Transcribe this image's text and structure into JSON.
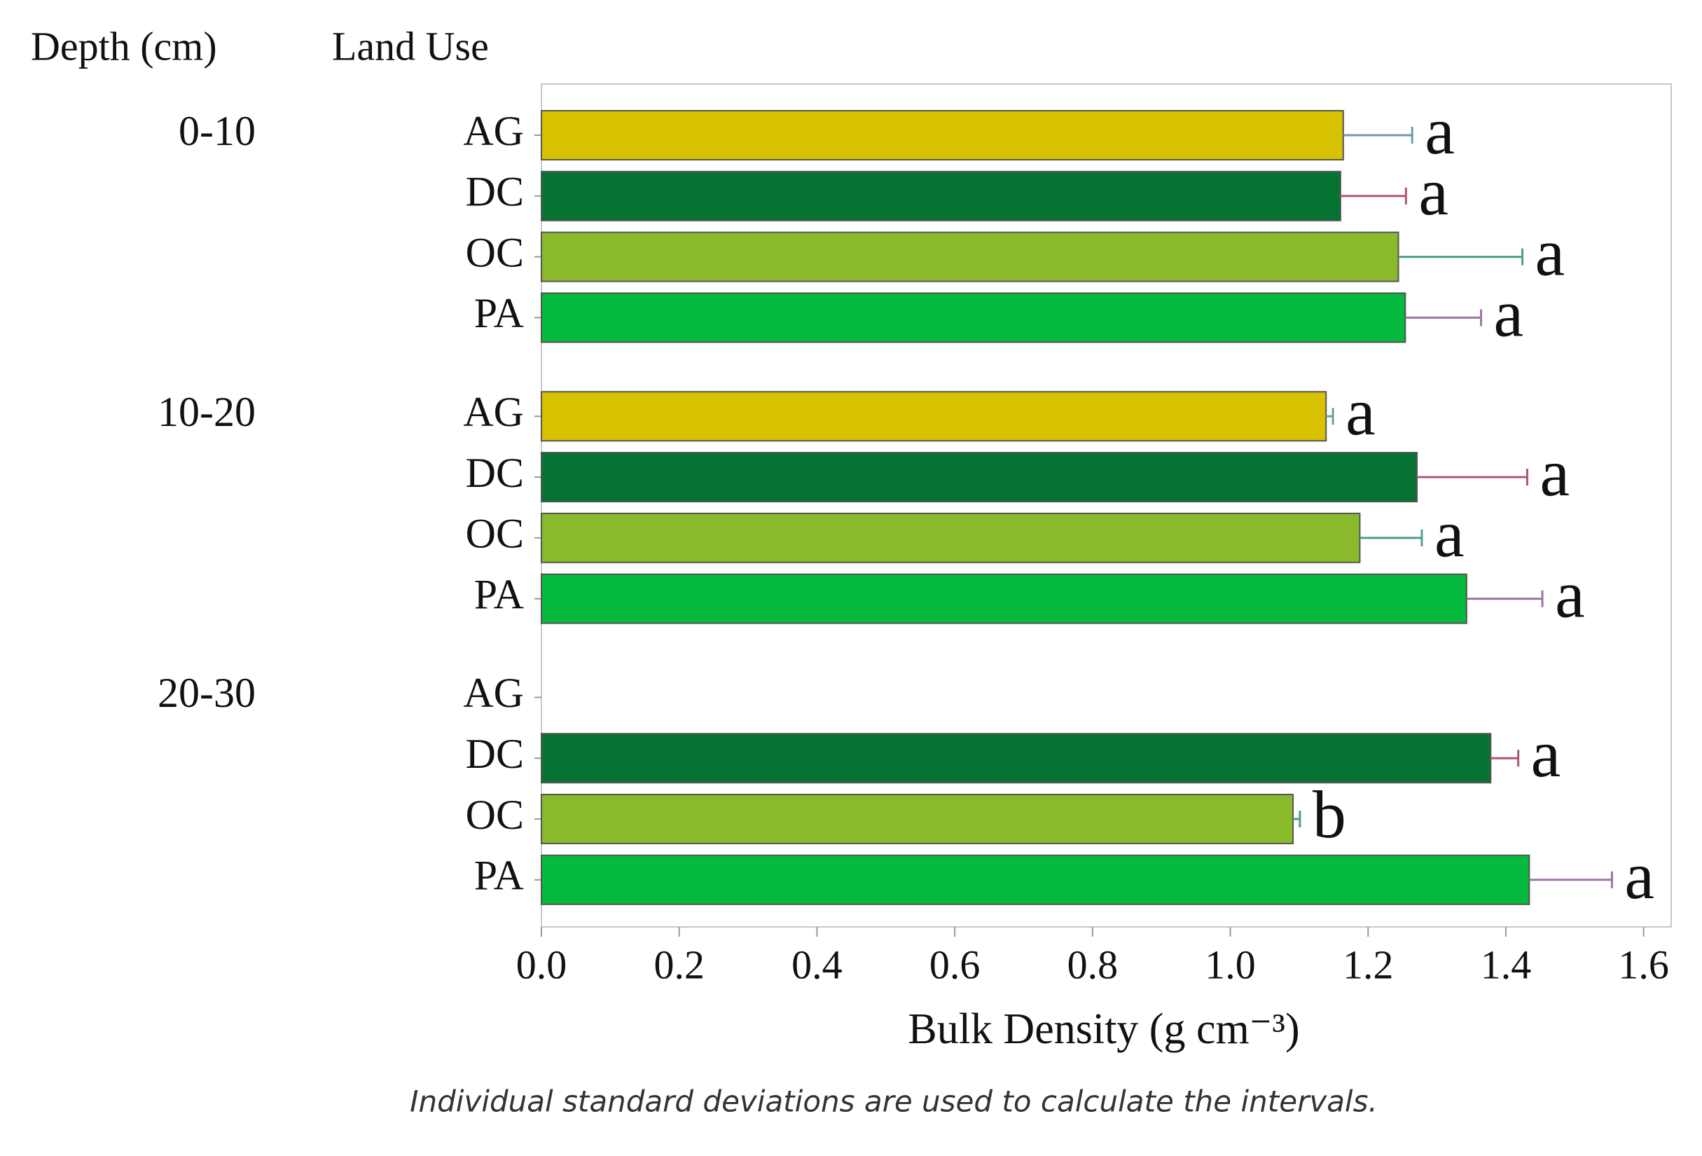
{
  "chart_data": {
    "type": "bar",
    "orientation": "horizontal",
    "group_header": "Depth (cm)",
    "category_header": "Land Use",
    "xlabel": "Bulk Density (g cm⁻³)",
    "note": "Individual standard deviations are used to calculate the intervals.",
    "colors": [
      "#d6c200",
      "#077333",
      "#89ba2b",
      "#04b93d"
    ],
    "error_colors": [
      "#6c9ca4",
      "#b0566a",
      "#4d9d8e",
      "#a172a8"
    ],
    "xlim": [
      0,
      1.64
    ],
    "xticks": [
      {
        "value": 0,
        "label": "0.0"
      },
      0.2,
      0.4,
      0.6,
      0.8,
      {
        "value": 1,
        "label": "1.0"
      },
      1.2,
      1.4,
      1.6
    ],
    "groups": [
      {
        "name": "0-10",
        "categories": [
          "AG",
          "DC",
          "OC",
          "PA"
        ],
        "values": [
          1.164,
          1.16,
          1.244,
          1.254
        ],
        "errors": [
          0.1,
          0.095,
          0.18,
          0.11
        ],
        "letters": [
          "a",
          "a",
          "a",
          "a"
        ]
      },
      {
        "name": "10-20",
        "categories": [
          "AG",
          "DC",
          "OC",
          "PA"
        ],
        "values": [
          1.139,
          1.271,
          1.188,
          1.343
        ],
        "errors": [
          0.01,
          0.16,
          0.09,
          0.11
        ],
        "letters": [
          "a",
          "a",
          "a",
          "a"
        ]
      },
      {
        "name": "20-30",
        "categories": [
          "AG",
          "DC",
          "OC",
          "PA"
        ],
        "values": [
          null,
          1.378,
          1.091,
          1.434
        ],
        "errors": [
          null,
          0.04,
          0.01,
          0.12
        ],
        "letters": [
          null,
          "a",
          "b",
          "a"
        ]
      }
    ]
  }
}
